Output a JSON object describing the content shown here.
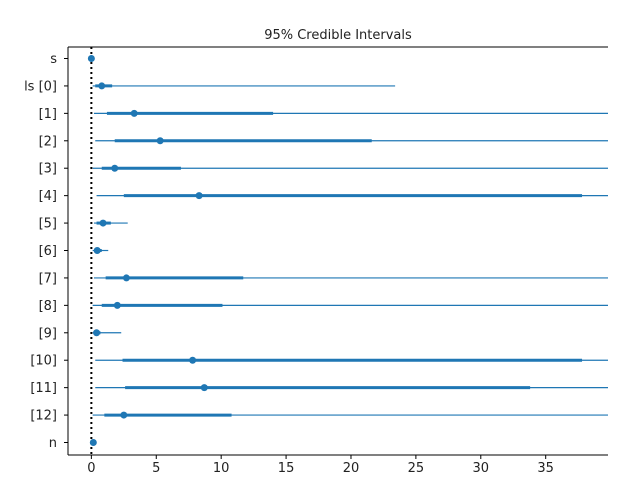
{
  "chart_data": {
    "type": "forest",
    "title": "95% Credible Intervals",
    "xlabel": "",
    "ylabel": "",
    "xlim": [
      -1.8,
      39.8
    ],
    "xticks": [
      0,
      5,
      10,
      15,
      20,
      25,
      30,
      35
    ],
    "reference_line": {
      "x": 0,
      "style": "dotted"
    },
    "color": "#1f77b4",
    "rows": [
      {
        "label": "s",
        "point": 0.0,
        "inner": [
          0.0,
          0.0
        ],
        "outer": [
          0.0,
          0.0
        ]
      },
      {
        "label": "ls [0]",
        "point": 0.8,
        "inner": [
          0.3,
          1.6
        ],
        "outer": [
          0.1,
          23.4
        ]
      },
      {
        "label": "[1]",
        "point": 3.3,
        "inner": [
          1.2,
          14.0
        ],
        "outer": [
          0.2,
          42.0
        ]
      },
      {
        "label": "[2]",
        "point": 5.3,
        "inner": [
          1.8,
          21.6
        ],
        "outer": [
          0.3,
          42.0
        ]
      },
      {
        "label": "[3]",
        "point": 1.8,
        "inner": [
          0.8,
          6.9
        ],
        "outer": [
          0.1,
          42.0
        ]
      },
      {
        "label": "[4]",
        "point": 8.3,
        "inner": [
          2.5,
          37.8
        ],
        "outer": [
          0.4,
          42.0
        ]
      },
      {
        "label": "[5]",
        "point": 0.9,
        "inner": [
          0.4,
          1.5
        ],
        "outer": [
          0.2,
          2.8
        ]
      },
      {
        "label": "[6]",
        "point": 0.45,
        "inner": [
          0.2,
          0.8
        ],
        "outer": [
          0.1,
          1.3
        ]
      },
      {
        "label": "[7]",
        "point": 2.7,
        "inner": [
          1.1,
          11.7
        ],
        "outer": [
          0.2,
          42.0
        ]
      },
      {
        "label": "[8]",
        "point": 2.0,
        "inner": [
          0.8,
          10.1
        ],
        "outer": [
          0.1,
          42.0
        ]
      },
      {
        "label": "[9]",
        "point": 0.4,
        "inner": [
          0.2,
          0.7
        ],
        "outer": [
          0.1,
          2.3
        ]
      },
      {
        "label": "[10]",
        "point": 7.8,
        "inner": [
          2.4,
          37.8
        ],
        "outer": [
          0.3,
          42.0
        ]
      },
      {
        "label": "[11]",
        "point": 8.7,
        "inner": [
          2.6,
          33.8
        ],
        "outer": [
          0.3,
          42.0
        ]
      },
      {
        "label": "[12]",
        "point": 2.5,
        "inner": [
          1.0,
          10.8
        ],
        "outer": [
          0.1,
          42.0
        ]
      },
      {
        "label": "n",
        "point": 0.15,
        "inner": [
          0.1,
          0.2
        ],
        "outer": [
          0.05,
          0.25
        ]
      }
    ]
  }
}
